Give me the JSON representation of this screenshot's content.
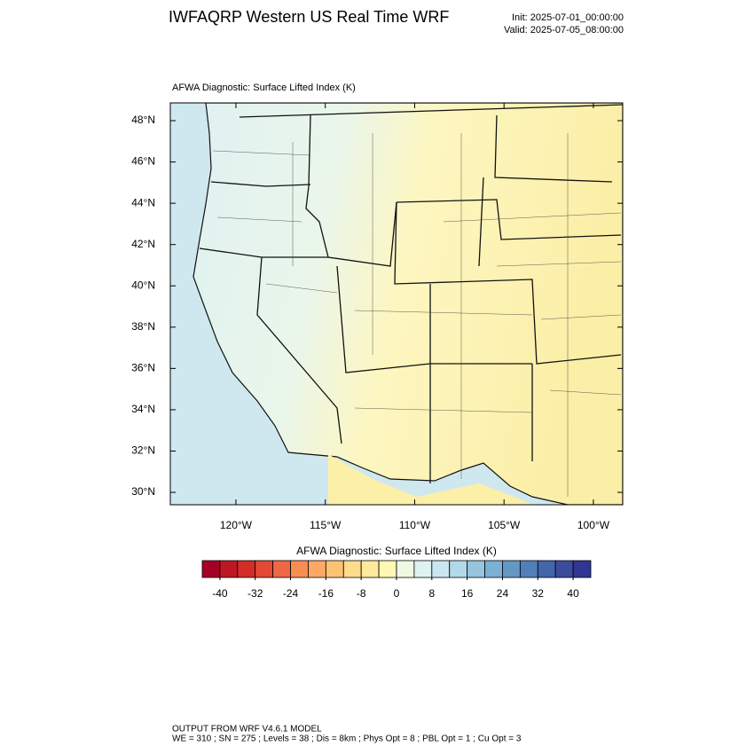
{
  "title": "IWFAQRP Western US Real Time WRF",
  "init": "Init: 2025-07-01_00:00:00",
  "valid": "Valid: 2025-07-05_08:00:00",
  "map": {
    "title": "AFWA Diagnostic: Surface Lifted Index   (K)",
    "xlim": [
      -123.67,
      -98.36
    ],
    "ylim": [
      29.4,
      48.86
    ],
    "xticks": [
      {
        "value": -120,
        "label": "120°W"
      },
      {
        "value": -115,
        "label": "115°W"
      },
      {
        "value": -110,
        "label": "110°W"
      },
      {
        "value": -105,
        "label": "105°W"
      },
      {
        "value": -100,
        "label": "100°W"
      }
    ],
    "yticks": [
      {
        "value": 30,
        "label": "30°N"
      },
      {
        "value": 32,
        "label": "32°N"
      },
      {
        "value": 34,
        "label": "34°N"
      },
      {
        "value": 36,
        "label": "36°N"
      },
      {
        "value": 38,
        "label": "38°N"
      },
      {
        "value": 40,
        "label": "40°N"
      },
      {
        "value": 42,
        "label": "42°N"
      },
      {
        "value": 44,
        "label": "44°N"
      },
      {
        "value": 46,
        "label": "46°N"
      },
      {
        "value": 48,
        "label": "48°N"
      }
    ]
  },
  "colorbar": {
    "title": "AFWA Diagnostic: Surface Lifted Index  (K)",
    "range": [
      -44,
      44
    ],
    "colors": [
      "#a50026",
      "#bd1726",
      "#d42d27",
      "#e34933",
      "#f06744",
      "#f88d52",
      "#fba965",
      "#fdc374",
      "#fedc8c",
      "#fee99d",
      "#fff8b4",
      "#eef8e2",
      "#dff1f1",
      "#c9e7f0",
      "#b0d9e9",
      "#95c5df",
      "#7cb0d4",
      "#6398c5",
      "#5180b9",
      "#4465aa",
      "#3b4c9c",
      "#313695"
    ],
    "ticks": [
      -40,
      -32,
      -24,
      -16,
      -8,
      0,
      8,
      16,
      24,
      32,
      40
    ]
  },
  "footer": [
    "OUTPUT FROM WRF V4.6.1 MODEL",
    "WE = 310 ; SN = 275 ; Levels = 38 ; Dis = 8km ; Phys Opt = 8 ; PBL Opt = 1 ; Cu Opt = 3"
  ]
}
